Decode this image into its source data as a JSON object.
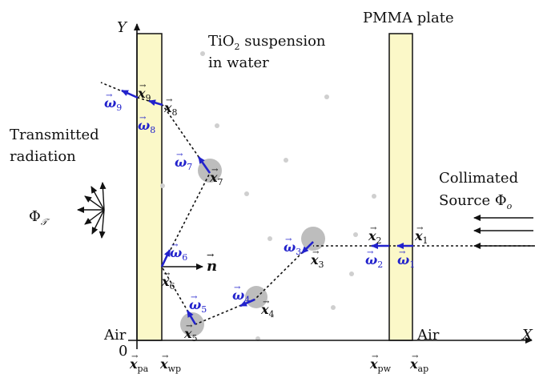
{
  "labels": {
    "y_axis": "Y",
    "x_axis": "X",
    "origin": "0",
    "suspension_line1": "TiO",
    "suspension_sub": "2",
    "suspension_line1_rest": " suspension",
    "suspension_line2": "in water",
    "pmma_plate": "PMMA plate",
    "transmitted_line1": "Transmitted",
    "transmitted_line2": "radiation",
    "phi_t_symbol": "Φ",
    "phi_t_sub": "𝒯",
    "collimated_line1": "Collimated",
    "collimated_line2": "Source Φ",
    "collimated_sub": "o",
    "air_left": "Air",
    "air_right": "Air",
    "normal": "n"
  },
  "interfaces": [
    {
      "base": "x",
      "sub": "pa"
    },
    {
      "base": "x",
      "sub": "wp"
    },
    {
      "base": "x",
      "sub": "pw"
    },
    {
      "base": "x",
      "sub": "ap"
    }
  ],
  "points": [
    {
      "base": "x",
      "sub": "1"
    },
    {
      "base": "x",
      "sub": "2"
    },
    {
      "base": "x",
      "sub": "3"
    },
    {
      "base": "x",
      "sub": "4"
    },
    {
      "base": "x",
      "sub": "5"
    },
    {
      "base": "x",
      "sub": "6"
    },
    {
      "base": "x",
      "sub": "7"
    },
    {
      "base": "x",
      "sub": "8"
    },
    {
      "base": "x",
      "sub": "9"
    }
  ],
  "directions": [
    {
      "base": "ω",
      "sub": "1"
    },
    {
      "base": "ω",
      "sub": "2"
    },
    {
      "base": "ω",
      "sub": "3"
    },
    {
      "base": "ω",
      "sub": "4"
    },
    {
      "base": "ω",
      "sub": "5"
    },
    {
      "base": "ω",
      "sub": "6"
    },
    {
      "base": "ω",
      "sub": "7"
    },
    {
      "base": "ω",
      "sub": "8"
    },
    {
      "base": "ω",
      "sub": "9"
    }
  ],
  "colors": {
    "plate_fill": "#fbf8c8",
    "direction_arrow": "#2222cc",
    "particle": "#bdbdbd",
    "line": "#111111"
  }
}
